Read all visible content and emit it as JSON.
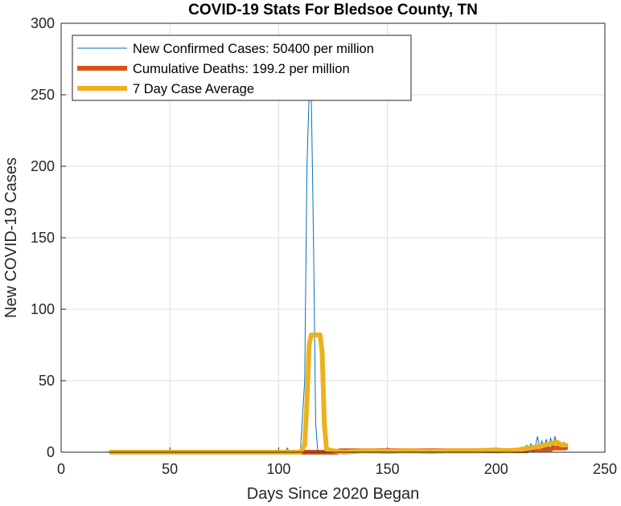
{
  "chart_data": {
    "type": "line",
    "title": "COVID-19 Stats For Bledsoe County, TN",
    "xlabel": "Days Since 2020 Began",
    "ylabel": "New COVID-19 Cases",
    "xlim": [
      0,
      250
    ],
    "ylim": [
      0,
      300
    ],
    "xticks": [
      0,
      50,
      100,
      150,
      200,
      250
    ],
    "yticks": [
      0,
      50,
      100,
      150,
      200,
      250,
      300
    ],
    "grid": true,
    "legend_position": "top-left",
    "series": [
      {
        "name": "New Confirmed Cases: 50400 per million",
        "color": "#0072BD",
        "x": [
          23,
          90,
          100,
          103,
          104,
          105,
          110,
          112,
          113,
          114,
          115,
          116,
          117,
          118,
          120,
          122,
          125,
          130,
          140,
          150,
          160,
          170,
          180,
          190,
          200,
          205,
          209,
          210,
          212,
          213,
          214,
          215,
          216,
          217,
          218,
          219,
          220,
          221,
          222,
          223,
          224,
          225,
          226,
          227,
          228,
          229,
          230,
          231,
          232
        ],
        "y": [
          0,
          0,
          0,
          0,
          3,
          0,
          0,
          50,
          200,
          250,
          250,
          150,
          20,
          0,
          0,
          1,
          0,
          0,
          1,
          0,
          1,
          0,
          1,
          0,
          1,
          0,
          2,
          0,
          3,
          1,
          5,
          2,
          6,
          0,
          4,
          11,
          3,
          8,
          2,
          9,
          3,
          10,
          4,
          11,
          5,
          6,
          3,
          7,
          5
        ]
      },
      {
        "name": "Cumulative Deaths: 199.2 per million",
        "color": "#D95319",
        "x": [
          23,
          127,
          128,
          214,
          215,
          225,
          226,
          232
        ],
        "y": [
          0,
          0,
          1,
          1,
          2,
          2,
          3,
          3
        ]
      },
      {
        "name": "7 Day Case Average",
        "color": "#EDB120",
        "x": [
          23,
          88,
          100,
          110,
          112,
          113,
          114,
          115,
          116,
          119,
          120,
          121,
          122,
          125,
          130,
          140,
          150,
          160,
          170,
          180,
          190,
          200,
          205,
          210,
          215,
          220,
          225,
          228,
          230,
          232
        ],
        "y": [
          0,
          0,
          0,
          0,
          5,
          35,
          75,
          82,
          82,
          82,
          70,
          20,
          2,
          1,
          0,
          1,
          0.5,
          1,
          0.5,
          1,
          1,
          1.5,
          1,
          1.5,
          3,
          4,
          6,
          7,
          5,
          5
        ]
      }
    ]
  }
}
